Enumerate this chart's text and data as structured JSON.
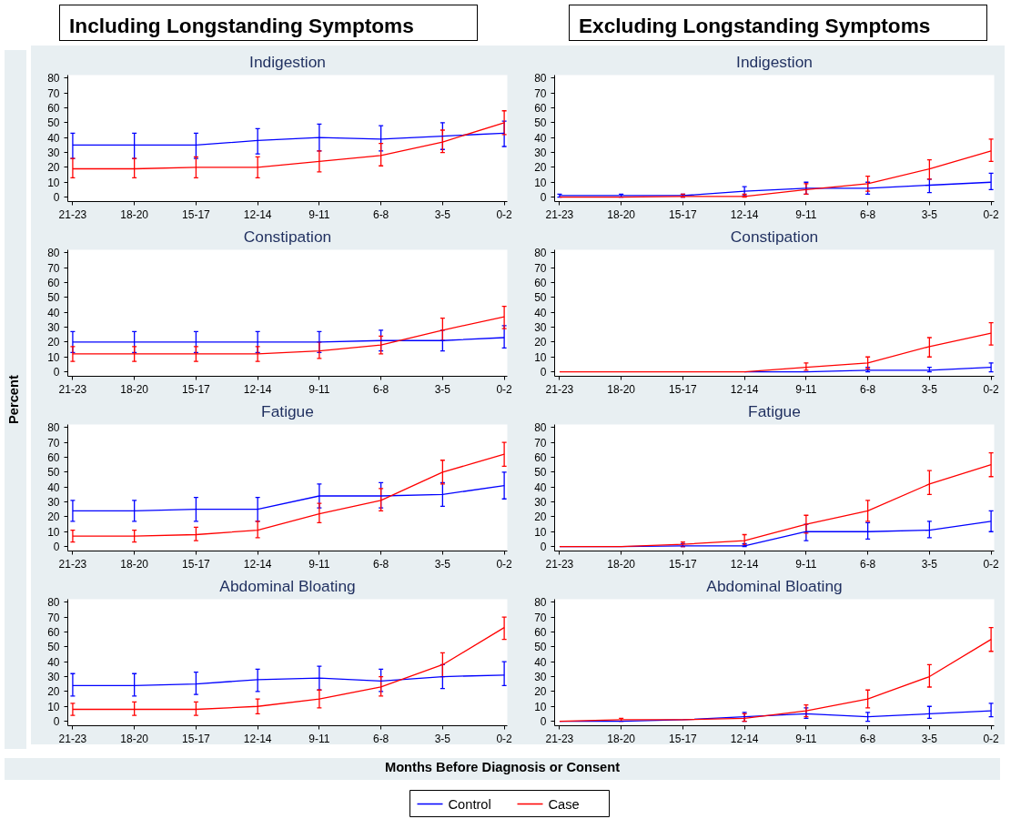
{
  "chart_data": [
    {
      "type": "other",
      "title": "Including Longstanding Symptoms"
    },
    {
      "type": "other",
      "title": "Excluding Longstanding Symptoms"
    },
    {
      "type": "line",
      "title": "Indigestion",
      "categories": [
        "21-23",
        "18-20",
        "15-17",
        "12-14",
        "9-11",
        "6-8",
        "3-5",
        "0-2"
      ],
      "ylim": [
        -3,
        82
      ],
      "yticks": [
        0,
        10,
        20,
        30,
        40,
        50,
        60,
        70,
        80
      ],
      "grid": false,
      "legend": "bottom",
      "series": [
        {
          "name": "Control",
          "color": "#0000ff",
          "values": [
            35,
            35,
            35,
            38,
            40,
            39,
            41,
            43
          ],
          "errors": [
            [
              26,
              43
            ],
            [
              26,
              43
            ],
            [
              26,
              43
            ],
            [
              29,
              46
            ],
            [
              31,
              49
            ],
            [
              31,
              48
            ],
            [
              32,
              50
            ],
            [
              34,
              51
            ]
          ]
        },
        {
          "name": "Case",
          "color": "#ff0000",
          "values": [
            19,
            19,
            20,
            20,
            24,
            28,
            37,
            50
          ],
          "errors": [
            [
              13,
              26
            ],
            [
              13,
              26
            ],
            [
              13,
              27
            ],
            [
              13,
              27
            ],
            [
              17,
              31
            ],
            [
              21,
              36
            ],
            [
              30,
              45
            ],
            [
              42,
              58
            ]
          ]
        }
      ]
    },
    {
      "type": "line",
      "title": "Indigestion",
      "categories": [
        "21-23",
        "18-20",
        "15-17",
        "12-14",
        "9-11",
        "6-8",
        "3-5",
        "0-2"
      ],
      "ylim": [
        -3,
        82
      ],
      "yticks": [
        0,
        10,
        20,
        30,
        40,
        50,
        60,
        70,
        80
      ],
      "grid": false,
      "series": [
        {
          "color": "#0000ff",
          "values": [
            1,
            1,
            1,
            4,
            6,
            6,
            8,
            10
          ],
          "errors": [
            [
              0,
              2
            ],
            [
              0,
              2
            ],
            [
              0,
              2
            ],
            [
              1,
              7
            ],
            [
              2,
              10
            ],
            [
              2,
              10
            ],
            [
              3,
              12
            ],
            [
              5,
              16
            ]
          ]
        },
        {
          "color": "#ff0000",
          "values": [
            0,
            0,
            0.5,
            0.5,
            5,
            9,
            19,
            31
          ],
          "errors": [
            null,
            null,
            [
              0,
              2
            ],
            [
              0,
              2
            ],
            [
              2,
              9
            ],
            [
              4,
              14
            ],
            [
              12,
              25
            ],
            [
              24,
              39
            ]
          ]
        }
      ]
    },
    {
      "type": "line",
      "title": "Constipation",
      "categories": [
        "21-23",
        "18-20",
        "15-17",
        "12-14",
        "9-11",
        "6-8",
        "3-5",
        "0-2"
      ],
      "ylim": [
        -3,
        82
      ],
      "yticks": [
        0,
        10,
        20,
        30,
        40,
        50,
        60,
        70,
        80
      ],
      "grid": false,
      "series": [
        {
          "color": "#0000ff",
          "values": [
            20,
            20,
            20,
            20,
            20,
            21,
            21,
            23
          ],
          "errors": [
            [
              13,
              27
            ],
            [
              13,
              27
            ],
            [
              13,
              27
            ],
            [
              13,
              27
            ],
            [
              13,
              27
            ],
            [
              14,
              28
            ],
            [
              14,
              28
            ],
            [
              16,
              31
            ]
          ]
        },
        {
          "color": "#ff0000",
          "values": [
            12,
            12,
            12,
            12,
            14,
            18,
            28,
            37
          ],
          "errors": [
            [
              7,
              17
            ],
            [
              7,
              17
            ],
            [
              7,
              17
            ],
            [
              7,
              17
            ],
            [
              9,
              20
            ],
            [
              12,
              24
            ],
            [
              21,
              36
            ],
            [
              29,
              44
            ]
          ]
        }
      ]
    },
    {
      "type": "line",
      "title": "Constipation",
      "categories": [
        "21-23",
        "18-20",
        "15-17",
        "12-14",
        "9-11",
        "6-8",
        "3-5",
        "0-2"
      ],
      "ylim": [
        -3,
        82
      ],
      "yticks": [
        0,
        10,
        20,
        30,
        40,
        50,
        60,
        70,
        80
      ],
      "grid": false,
      "series": [
        {
          "color": "#0000ff",
          "values": [
            null,
            null,
            null,
            0,
            0,
            1,
            1,
            3
          ],
          "errors": [
            null,
            null,
            null,
            null,
            null,
            [
              0,
              3
            ],
            [
              0,
              3
            ],
            [
              0,
              6
            ]
          ]
        },
        {
          "color": "#ff0000",
          "values": [
            0,
            0,
            0,
            0,
            3,
            6,
            17,
            26
          ],
          "errors": [
            null,
            null,
            null,
            null,
            [
              1,
              6
            ],
            [
              2,
              10
            ],
            [
              10,
              23
            ],
            [
              18,
              33
            ]
          ]
        }
      ]
    },
    {
      "type": "line",
      "title": "Fatigue",
      "categories": [
        "21-23",
        "18-20",
        "15-17",
        "12-14",
        "9-11",
        "6-8",
        "3-5",
        "0-2"
      ],
      "ylim": [
        -3,
        82
      ],
      "yticks": [
        0,
        10,
        20,
        30,
        40,
        50,
        60,
        70,
        80
      ],
      "grid": false,
      "series": [
        {
          "color": "#0000ff",
          "values": [
            24,
            24,
            25,
            25,
            34,
            34,
            35,
            41
          ],
          "errors": [
            [
              17,
              31
            ],
            [
              17,
              31
            ],
            [
              17,
              33
            ],
            [
              17,
              33
            ],
            [
              26,
              42
            ],
            [
              26,
              43
            ],
            [
              27,
              43
            ],
            [
              32,
              50
            ]
          ]
        },
        {
          "color": "#ff0000",
          "values": [
            7,
            7,
            8,
            11,
            22,
            31,
            50,
            62
          ],
          "errors": [
            [
              3,
              11
            ],
            [
              3,
              11
            ],
            [
              4,
              13
            ],
            [
              6,
              17
            ],
            [
              16,
              29
            ],
            [
              24,
              39
            ],
            [
              42,
              58
            ],
            [
              54,
              70
            ]
          ]
        }
      ]
    },
    {
      "type": "line",
      "title": "Fatigue",
      "categories": [
        "21-23",
        "18-20",
        "15-17",
        "12-14",
        "9-11",
        "6-8",
        "3-5",
        "0-2"
      ],
      "ylim": [
        -3,
        82
      ],
      "yticks": [
        0,
        10,
        20,
        30,
        40,
        50,
        60,
        70,
        80
      ],
      "grid": false,
      "series": [
        {
          "color": "#0000ff",
          "values": [
            0,
            0,
            0.5,
            0.5,
            10,
            10,
            11,
            17
          ],
          "errors": [
            null,
            null,
            [
              0,
              2
            ],
            [
              0,
              2
            ],
            [
              4,
              15
            ],
            [
              5,
              16
            ],
            [
              6,
              17
            ],
            [
              10,
              24
            ]
          ]
        },
        {
          "color": "#ff0000",
          "values": [
            0,
            0,
            1.5,
            4,
            15,
            24,
            42,
            55
          ],
          "errors": [
            null,
            null,
            [
              0,
              3
            ],
            [
              1,
              8
            ],
            [
              9,
              21
            ],
            [
              17,
              31
            ],
            [
              35,
              51
            ],
            [
              47,
              63
            ]
          ]
        }
      ]
    },
    {
      "type": "line",
      "title": "Abdominal Bloating",
      "categories": [
        "21-23",
        "18-20",
        "15-17",
        "12-14",
        "9-11",
        "6-8",
        "3-5",
        "0-2"
      ],
      "ylim": [
        -3,
        82
      ],
      "yticks": [
        0,
        10,
        20,
        30,
        40,
        50,
        60,
        70,
        80
      ],
      "grid": false,
      "series": [
        {
          "color": "#0000ff",
          "values": [
            24,
            24,
            25,
            28,
            29,
            27,
            30,
            31
          ],
          "errors": [
            [
              17,
              32
            ],
            [
              17,
              32
            ],
            [
              18,
              33
            ],
            [
              20,
              35
            ],
            [
              21,
              37
            ],
            [
              20,
              35
            ],
            [
              22,
              38
            ],
            [
              24,
              40
            ]
          ]
        },
        {
          "color": "#ff0000",
          "values": [
            8,
            8,
            8,
            10,
            15,
            23,
            38,
            63
          ],
          "errors": [
            [
              4,
              12
            ],
            [
              4,
              13
            ],
            [
              4,
              13
            ],
            [
              5,
              15
            ],
            [
              9,
              21
            ],
            [
              17,
              30
            ],
            [
              30,
              46
            ],
            [
              55,
              70
            ]
          ]
        }
      ]
    },
    {
      "type": "line",
      "title": "Abdominal Bloating",
      "categories": [
        "21-23",
        "18-20",
        "15-17",
        "12-14",
        "9-11",
        "6-8",
        "3-5",
        "0-2"
      ],
      "ylim": [
        -3,
        82
      ],
      "yticks": [
        0,
        10,
        20,
        30,
        40,
        50,
        60,
        70,
        80
      ],
      "grid": false,
      "series": [
        {
          "color": "#0000ff",
          "values": [
            0,
            0,
            1,
            3,
            5,
            3,
            5,
            7
          ],
          "errors": [
            null,
            null,
            null,
            [
              0,
              6
            ],
            [
              2,
              9
            ],
            [
              0,
              6
            ],
            [
              2,
              10
            ],
            [
              3,
              12
            ]
          ]
        },
        {
          "color": "#ff0000",
          "values": [
            0,
            1,
            1,
            2,
            7,
            15,
            30,
            55
          ],
          "errors": [
            null,
            [
              0,
              2
            ],
            null,
            [
              0,
              5
            ],
            [
              3,
              11
            ],
            [
              9,
              21
            ],
            [
              23,
              38
            ],
            [
              47,
              63
            ]
          ]
        }
      ]
    },
    {
      "type": "other",
      "xlabel": "Months Before Diagnosis or Consent",
      "ylabel": "Percent"
    }
  ]
}
